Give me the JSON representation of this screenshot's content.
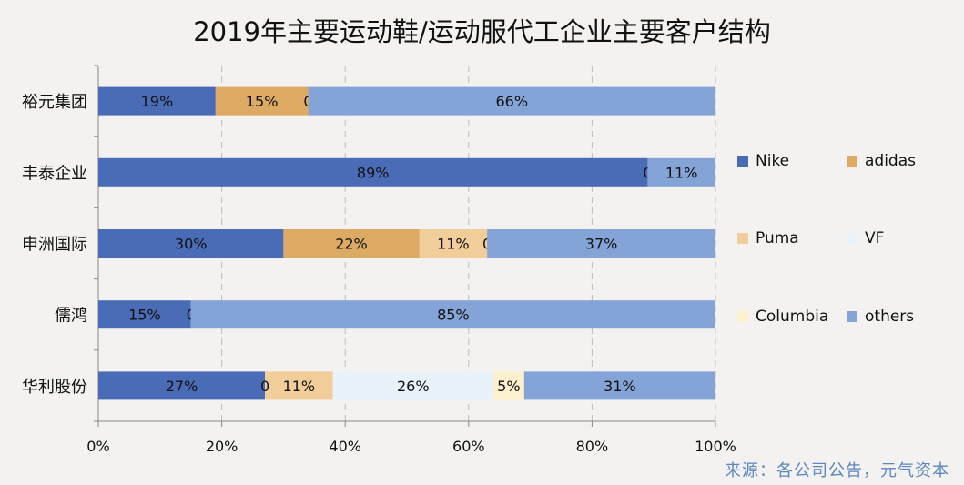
{
  "title": "2019年主要运动鞋/运动服代工企业主要客户结构",
  "source": "来源：各公司公告，元气资本",
  "chart_data": {
    "type": "bar",
    "orientation": "horizontal",
    "stacked": true,
    "categories": [
      "裕元集团",
      "丰泰企业",
      "申洲国际",
      "儒鸿",
      "华利股份"
    ],
    "series": [
      {
        "name": "Nike",
        "color": "#4a6bb5",
        "values": [
          19,
          89,
          30,
          15,
          27
        ],
        "labels": [
          "19%",
          "89%",
          "30%",
          "15%",
          "27%"
        ]
      },
      {
        "name": "adidas",
        "color": "#dcaa62",
        "values": [
          15,
          0,
          22,
          0,
          0
        ],
        "labels": [
          "15%",
          "",
          "22%",
          "",
          ""
        ]
      },
      {
        "name": "Puma",
        "color": "#f1cd9a",
        "values": [
          0,
          0,
          11,
          0,
          11
        ],
        "labels": [
          "0",
          "",
          "11%",
          "",
          "11%"
        ]
      },
      {
        "name": "VF",
        "color": "#e8f2fa",
        "values": [
          0,
          0,
          0,
          0,
          26
        ],
        "labels": [
          "",
          "0",
          "0",
          "0",
          "26%"
        ]
      },
      {
        "name": "Columbia",
        "color": "#fdf0cd",
        "values": [
          0,
          0,
          0,
          0,
          5
        ],
        "labels": [
          "",
          "",
          "",
          "",
          "5%"
        ]
      },
      {
        "name": "others",
        "color": "#84a3d6",
        "values": [
          66,
          11,
          37,
          85,
          31
        ],
        "labels": [
          "66%",
          "11%",
          "37%",
          "85%",
          "31%"
        ]
      }
    ],
    "extra_labels": [
      {
        "category": "华利股份",
        "text": "0"
      }
    ],
    "xlim": [
      0,
      100
    ],
    "xticks": [
      "0%",
      "20%",
      "40%",
      "60%",
      "80%",
      "100%"
    ],
    "legend": {
      "position": "right",
      "columns": 2
    },
    "grid": "vertical dashed"
  }
}
